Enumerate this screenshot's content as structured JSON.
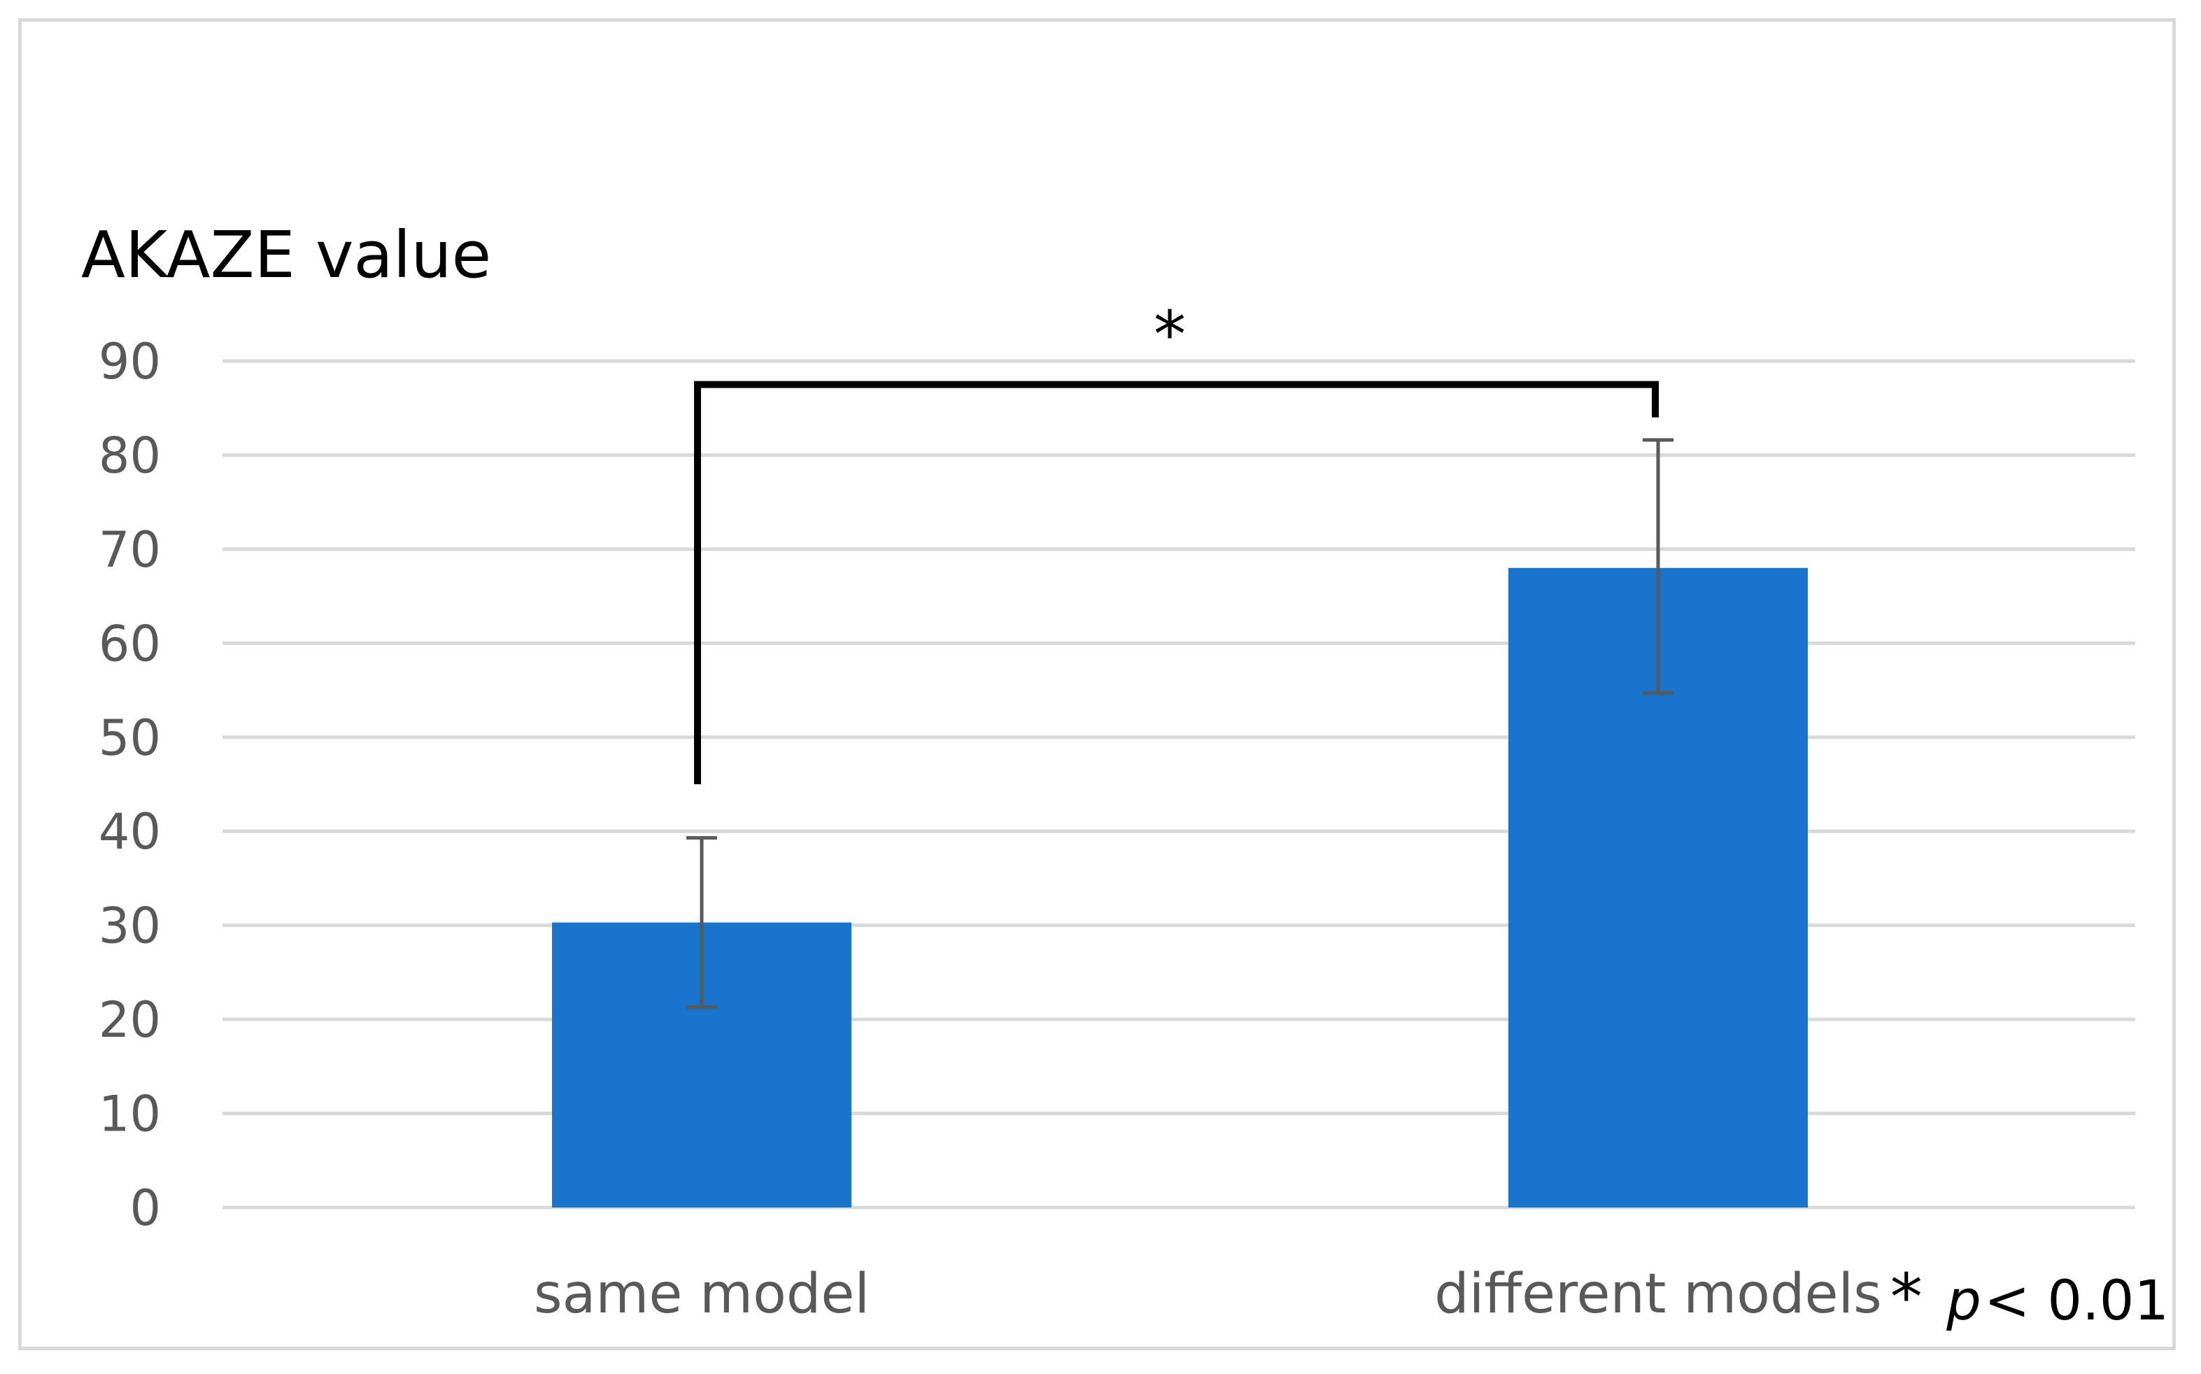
{
  "chart_data": {
    "type": "bar",
    "ylabel": "AKAZE value",
    "xlabel": "",
    "categories": [
      "same model",
      "different models"
    ],
    "values": [
      30.3,
      68.0
    ],
    "error": [
      {
        "low": 21.3,
        "high": 39.3
      },
      {
        "low": 54.7,
        "high": 81.6
      }
    ],
    "ylim": [
      0,
      90
    ],
    "yticks": [
      0,
      10,
      20,
      30,
      40,
      50,
      60,
      70,
      80,
      90
    ],
    "grid": true,
    "bar_color": "#1874CD",
    "error_color": "#595959",
    "significance": {
      "marker": "*",
      "from_value": 45,
      "to_value": 87.5,
      "bracket_end_value": 84
    },
    "annotation": {
      "star": "*",
      "p_symbol": "p",
      "p_rest": " < 0.01"
    }
  }
}
